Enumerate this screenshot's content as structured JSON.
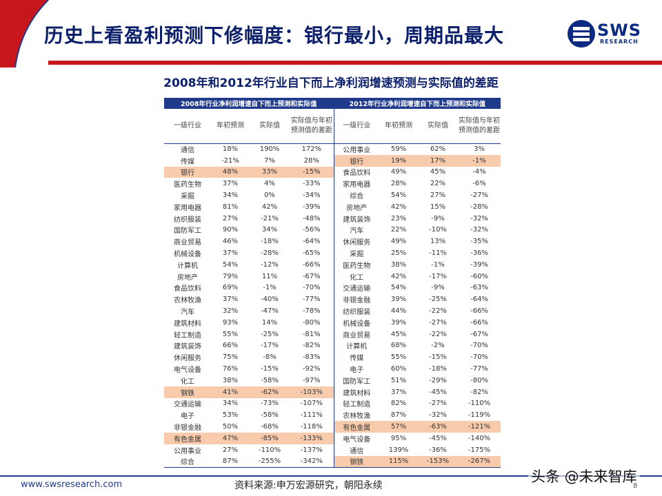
{
  "header": {
    "title": "历史上看盈利预测下修幅度：银行最小，周期品最大",
    "logo_text": "SWS",
    "logo_sub": "RESEARCH"
  },
  "colors": {
    "navy": "#1f3a8a",
    "red": "#c8161d",
    "highlight": "#f8cbad"
  },
  "table_title": "2008年和2012年行业自下而上净利润增速预测与实际值的差距",
  "table": {
    "group_left": "2008年行业净利润增速自下而上预测和实际值",
    "group_right": "2012年行业净利润增速自下而上预测和实际值",
    "col_headers": [
      "一级行业",
      "年初预测",
      "实际值",
      "实际值与年初预测值的差距"
    ],
    "rows": [
      {
        "l": [
          "通信",
          "18%",
          "190%",
          "172%"
        ],
        "r": [
          "公用事业",
          "59%",
          "62%",
          "3%"
        ]
      },
      {
        "l": [
          "传媒",
          "-21%",
          "7%",
          "28%"
        ],
        "r": [
          "银行",
          "19%",
          "17%",
          "-1%"
        ]
      },
      {
        "l": [
          "银行",
          "48%",
          "33%",
          "-15%"
        ],
        "r": [
          "食品饮料",
          "49%",
          "45%",
          "-4%"
        ]
      },
      {
        "l": [
          "医药生物",
          "37%",
          "4%",
          "-33%"
        ],
        "r": [
          "家用电器",
          "28%",
          "22%",
          "-6%"
        ]
      },
      {
        "l": [
          "采掘",
          "34%",
          "0%",
          "-34%"
        ],
        "r": [
          "综合",
          "54%",
          "27%",
          "-27%"
        ]
      },
      {
        "l": [
          "家用电器",
          "81%",
          "42%",
          "-39%"
        ],
        "r": [
          "房地产",
          "42%",
          "15%",
          "-28%"
        ]
      },
      {
        "l": [
          "纺织服装",
          "27%",
          "-21%",
          "-48%"
        ],
        "r": [
          "建筑装饰",
          "23%",
          "-9%",
          "-32%"
        ]
      },
      {
        "l": [
          "国防军工",
          "90%",
          "34%",
          "-56%"
        ],
        "r": [
          "汽车",
          "22%",
          "-10%",
          "-32%"
        ]
      },
      {
        "l": [
          "商业贸易",
          "46%",
          "-18%",
          "-64%"
        ],
        "r": [
          "休闲服务",
          "49%",
          "13%",
          "-35%"
        ]
      },
      {
        "l": [
          "机械设备",
          "37%",
          "-28%",
          "-65%"
        ],
        "r": [
          "采掘",
          "25%",
          "-11%",
          "-36%"
        ]
      },
      {
        "l": [
          "计算机",
          "54%",
          "-12%",
          "-66%"
        ],
        "r": [
          "医药生物",
          "38%",
          "-1%",
          "-39%"
        ]
      },
      {
        "l": [
          "房地产",
          "79%",
          "11%",
          "-67%"
        ],
        "r": [
          "化工",
          "42%",
          "-17%",
          "-60%"
        ]
      },
      {
        "l": [
          "食品饮料",
          "69%",
          "-1%",
          "-70%"
        ],
        "r": [
          "交通运输",
          "54%",
          "-9%",
          "-63%"
        ]
      },
      {
        "l": [
          "农林牧渔",
          "37%",
          "-40%",
          "-77%"
        ],
        "r": [
          "非银金融",
          "39%",
          "-25%",
          "-64%"
        ]
      },
      {
        "l": [
          "汽车",
          "32%",
          "-47%",
          "-78%"
        ],
        "r": [
          "纺织服装",
          "44%",
          "-22%",
          "-66%"
        ]
      },
      {
        "l": [
          "建筑材料",
          "93%",
          "14%",
          "-80%"
        ],
        "r": [
          "机械设备",
          "39%",
          "-27%",
          "-66%"
        ]
      },
      {
        "l": [
          "轻工制造",
          "55%",
          "-25%",
          "-81%"
        ],
        "r": [
          "商业贸易",
          "45%",
          "-22%",
          "-67%"
        ]
      },
      {
        "l": [
          "建筑装饰",
          "66%",
          "-17%",
          "-82%"
        ],
        "r": [
          "计算机",
          "68%",
          "-2%",
          "-70%"
        ]
      },
      {
        "l": [
          "休闲服务",
          "75%",
          "-8%",
          "-83%"
        ],
        "r": [
          "传媒",
          "55%",
          "-15%",
          "-70%"
        ]
      },
      {
        "l": [
          "电气设备",
          "76%",
          "-15%",
          "-92%"
        ],
        "r": [
          "电子",
          "60%",
          "-18%",
          "-77%"
        ]
      },
      {
        "l": [
          "化工",
          "38%",
          "-58%",
          "-97%"
        ],
        "r": [
          "国防军工",
          "51%",
          "-29%",
          "-80%"
        ]
      },
      {
        "l": [
          "钢铁",
          "41%",
          "-62%",
          "-103%"
        ],
        "r": [
          "建筑材料",
          "37%",
          "-45%",
          "-82%"
        ]
      },
      {
        "l": [
          "交通运输",
          "34%",
          "-73%",
          "-107%"
        ],
        "r": [
          "轻工制造",
          "82%",
          "-27%",
          "-110%"
        ]
      },
      {
        "l": [
          "电子",
          "53%",
          "-58%",
          "-111%"
        ],
        "r": [
          "农林牧渔",
          "87%",
          "-32%",
          "-119%"
        ]
      },
      {
        "l": [
          "非银金融",
          "50%",
          "-68%",
          "-118%"
        ],
        "r": [
          "有色金属",
          "57%",
          "-63%",
          "-121%"
        ]
      },
      {
        "l": [
          "有色金属",
          "47%",
          "-85%",
          "-133%"
        ],
        "r": [
          "电气设备",
          "95%",
          "-45%",
          "-140%"
        ]
      },
      {
        "l": [
          "公用事业",
          "27%",
          "-110%",
          "-137%"
        ],
        "r": [
          "通信",
          "139%",
          "-36%",
          "-175%"
        ]
      },
      {
        "l": [
          "综合",
          "87%",
          "-255%",
          "-342%"
        ],
        "r": [
          "钢铁",
          "115%",
          "-153%",
          "-267%"
        ]
      }
    ],
    "highlight_left": [
      2,
      21,
      25
    ],
    "highlight_right": [
      1,
      24,
      27
    ]
  },
  "footer": {
    "url": "www.swsresearch.com",
    "source": "资料来源:申万宏源研究，朝阳永续",
    "page": "8",
    "watermark": "头条 @未来智库"
  }
}
